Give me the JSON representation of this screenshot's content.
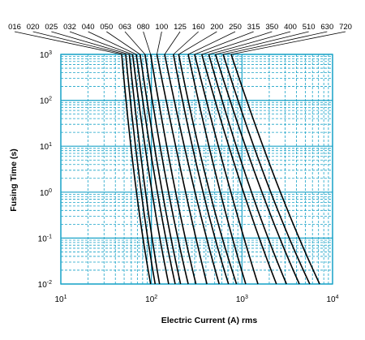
{
  "chart_data": {
    "type": "line",
    "xscale": "log",
    "yscale": "log",
    "xlim": [
      10,
      10000
    ],
    "ylim": [
      0.01,
      1000
    ],
    "xlabel": "Electric Current (A) rms",
    "ylabel": "Fusing Time (s)",
    "x_tick_labels": [
      {
        "base": "10",
        "exp": "1"
      },
      {
        "base": "10",
        "exp": "2"
      },
      {
        "base": "10",
        "exp": "3"
      },
      {
        "base": "10",
        "exp": "4"
      }
    ],
    "y_tick_labels": [
      {
        "base": "10",
        "exp": "-2"
      },
      {
        "base": "10",
        "exp": "-1"
      },
      {
        "base": "10",
        "exp": "0"
      },
      {
        "base": "10",
        "exp": "1"
      },
      {
        "base": "10",
        "exp": "2"
      },
      {
        "base": "10",
        "exp": "3"
      }
    ],
    "grid": true,
    "grid_color": "#1aa3c8",
    "line_color": "#000000",
    "series": [
      {
        "name": "016",
        "x": [
          47,
          64,
          98
        ],
        "y": [
          1000,
          1,
          0.01
        ]
      },
      {
        "name": "020",
        "x": [
          52,
          73,
          110
        ],
        "y": [
          1000,
          1,
          0.01
        ]
      },
      {
        "name": "025",
        "x": [
          57,
          82,
          123
        ],
        "y": [
          1000,
          1,
          0.01
        ]
      },
      {
        "name": "032",
        "x": [
          62,
          96,
          155
        ],
        "y": [
          1000,
          1,
          0.01
        ]
      },
      {
        "name": "040",
        "x": [
          68,
          110,
          183
        ],
        "y": [
          1000,
          1,
          0.01
        ]
      },
      {
        "name": "050",
        "x": [
          75,
          125,
          210
        ],
        "y": [
          1000,
          1,
          0.01
        ]
      },
      {
        "name": "063",
        "x": [
          85,
          145,
          255
        ],
        "y": [
          1000,
          1,
          0.01
        ]
      },
      {
        "name": "080",
        "x": [
          98,
          175,
          310
        ],
        "y": [
          1000,
          1,
          0.01
        ]
      },
      {
        "name": "100",
        "x": [
          115,
          230,
          410
        ],
        "y": [
          1000,
          1,
          0.01
        ]
      },
      {
        "name": "125",
        "x": [
          140,
          285,
          560
        ],
        "y": [
          1000,
          1,
          0.01
        ]
      },
      {
        "name": "160",
        "x": [
          175,
          340,
          710
        ],
        "y": [
          1000,
          1,
          0.01
        ]
      },
      {
        "name": "200",
        "x": [
          200,
          400,
          870
        ],
        "y": [
          1000,
          1,
          0.01
        ]
      },
      {
        "name": "250",
        "x": [
          255,
          540,
          1100
        ],
        "y": [
          1000,
          1,
          0.01
        ]
      },
      {
        "name": "315",
        "x": [
          300,
          720,
          1500
        ],
        "y": [
          1000,
          1,
          0.01
        ]
      },
      {
        "name": "350",
        "x": [
          360,
          960,
          2400
        ],
        "y": [
          1000,
          1,
          0.01
        ]
      },
      {
        "name": "400",
        "x": [
          430,
          1150,
          3100
        ],
        "y": [
          1000,
          1,
          0.01
        ]
      },
      {
        "name": "510",
        "x": [
          510,
          1500,
          4300
        ],
        "y": [
          1000,
          1,
          0.01
        ]
      },
      {
        "name": "630",
        "x": [
          620,
          1850,
          5600
        ],
        "y": [
          1000,
          1,
          0.01
        ]
      },
      {
        "name": "720",
        "x": [
          760,
          2400,
          7200
        ],
        "y": [
          1000,
          1,
          0.01
        ]
      }
    ]
  }
}
